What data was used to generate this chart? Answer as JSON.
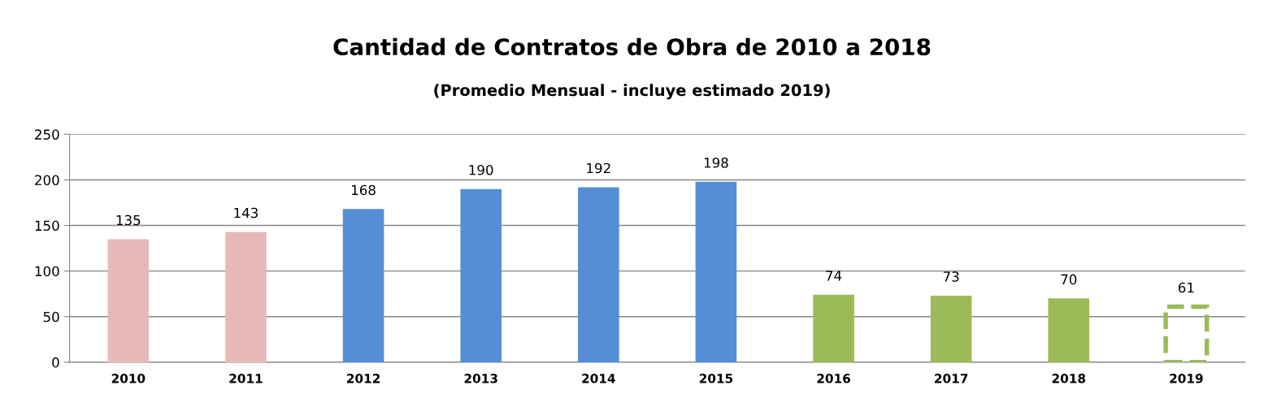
{
  "chart_data": {
    "type": "bar",
    "title": "Cantidad de Contratos de Obra de 2010 a 2018",
    "subtitle": "(Promedio Mensual - incluye estimado 2019)",
    "categories": [
      "2010",
      "2011",
      "2012",
      "2013",
      "2014",
      "2015",
      "2016",
      "2017",
      "2018",
      "2019"
    ],
    "series": [
      {
        "colors": [
          "#e6b9b8",
          "#e6b9b8",
          "#558ed5",
          "#558ed5",
          "#558ed5",
          "#558ed5",
          "#9bbb59",
          "#9bbb59",
          "#9bbb59",
          null
        ],
        "values": [
          135,
          143,
          168,
          190,
          192,
          198,
          74,
          73,
          70,
          null
        ]
      },
      {
        "color": "#9bbb59",
        "line_style": "dashed",
        "values": [
          null,
          null,
          null,
          null,
          null,
          null,
          null,
          null,
          null,
          61
        ]
      }
    ],
    "ylim": [
      0,
      250
    ],
    "yticks": [
      0,
      50,
      100,
      150,
      200,
      250
    ],
    "grid": "y",
    "data_labels": true
  }
}
